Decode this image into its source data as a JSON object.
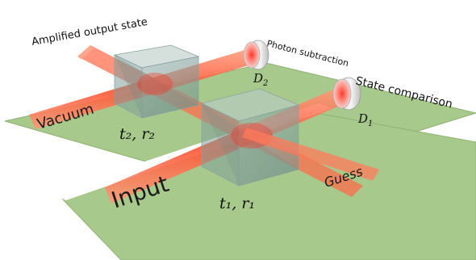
{
  "labels": {
    "amplified_output": "Amplified output state",
    "photon_subtraction": "Photon subtraction",
    "state_comparison": "State comparison",
    "vacuum": "Vacuum",
    "input": "Input",
    "guess": "Guess",
    "detector_2": "D",
    "detector_2_sub": "2",
    "detector_1": "D",
    "detector_1_sub": "1",
    "bs2_params": "t₂, r₂",
    "bs1_params": "t₁, r₁"
  },
  "colors": {
    "table": "#a6c68a",
    "table_edge": "#8fb272",
    "beam": "#ff5a3c",
    "beam_core": "#ff2a1a",
    "cube": "#7f9f9a"
  }
}
